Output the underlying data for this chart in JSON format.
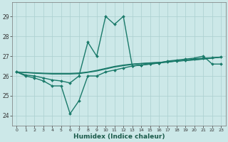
{
  "xlabel": "Humidex (Indice chaleur)",
  "background_color": "#cce8e8",
  "grid_color": "#aacfcf",
  "line_color": "#1a7a6a",
  "xlim": [
    -0.5,
    23.5
  ],
  "ylim": [
    23.5,
    29.7
  ],
  "xtick_labels": [
    "0",
    "1",
    "2",
    "3",
    "4",
    "5",
    "6",
    "7",
    "8",
    "9",
    "10",
    "11",
    "12",
    "13",
    "14",
    "15",
    "16",
    "17",
    "18",
    "19",
    "20",
    "21",
    "22",
    "23"
  ],
  "yticks": [
    24,
    25,
    26,
    27,
    28,
    29
  ],
  "series": [
    {
      "x": [
        0,
        1,
        2,
        3,
        4,
        5,
        6,
        7,
        8,
        9,
        10,
        11,
        12,
        13,
        14,
        15,
        16,
        17,
        18,
        19,
        20,
        21,
        22,
        23
      ],
      "y": [
        26.2,
        26.0,
        25.9,
        25.75,
        25.5,
        25.5,
        24.1,
        24.75,
        26.0,
        26.0,
        26.2,
        26.3,
        26.4,
        26.5,
        26.55,
        26.6,
        26.65,
        26.7,
        26.75,
        26.8,
        26.85,
        26.9,
        26.92,
        26.95
      ],
      "marker": "D",
      "ms": 2.0,
      "lw": 1.0
    },
    {
      "x": [
        0,
        1,
        2,
        3,
        4,
        5,
        6,
        7,
        8,
        9,
        10,
        11,
        12,
        13,
        14,
        15,
        16,
        17,
        18,
        19,
        20,
        21,
        22,
        23
      ],
      "y": [
        26.2,
        26.18,
        26.16,
        26.14,
        26.13,
        26.13,
        26.13,
        26.15,
        26.2,
        26.28,
        26.38,
        26.48,
        26.55,
        26.6,
        26.63,
        26.66,
        26.68,
        26.72,
        26.75,
        26.78,
        26.81,
        26.85,
        26.9,
        26.95
      ],
      "marker": null,
      "ms": 0,
      "lw": 1.0
    },
    {
      "x": [
        0,
        1,
        2,
        3,
        4,
        5,
        6,
        7,
        8,
        9,
        10,
        11,
        12,
        13,
        14,
        15,
        16,
        17,
        18,
        19,
        20,
        21,
        22,
        23
      ],
      "y": [
        26.2,
        26.17,
        26.14,
        26.12,
        26.1,
        26.1,
        26.1,
        26.12,
        26.18,
        26.25,
        26.35,
        26.45,
        26.52,
        26.58,
        26.62,
        26.65,
        26.68,
        26.72,
        26.75,
        26.78,
        26.82,
        26.86,
        26.9,
        26.95
      ],
      "marker": null,
      "ms": 0,
      "lw": 1.0
    },
    {
      "x": [
        0,
        1,
        2,
        3,
        4,
        5,
        6,
        7,
        8,
        9,
        10,
        11,
        12,
        13,
        14,
        15,
        16,
        17,
        18,
        19,
        20,
        21,
        22,
        23
      ],
      "y": [
        26.2,
        26.05,
        26.0,
        25.9,
        25.8,
        25.75,
        25.65,
        26.0,
        27.7,
        27.0,
        29.0,
        28.6,
        29.0,
        26.5,
        26.55,
        26.6,
        26.65,
        26.75,
        26.8,
        26.85,
        26.9,
        27.0,
        26.6,
        26.6
      ],
      "marker": "D",
      "ms": 2.0,
      "lw": 1.0
    }
  ]
}
